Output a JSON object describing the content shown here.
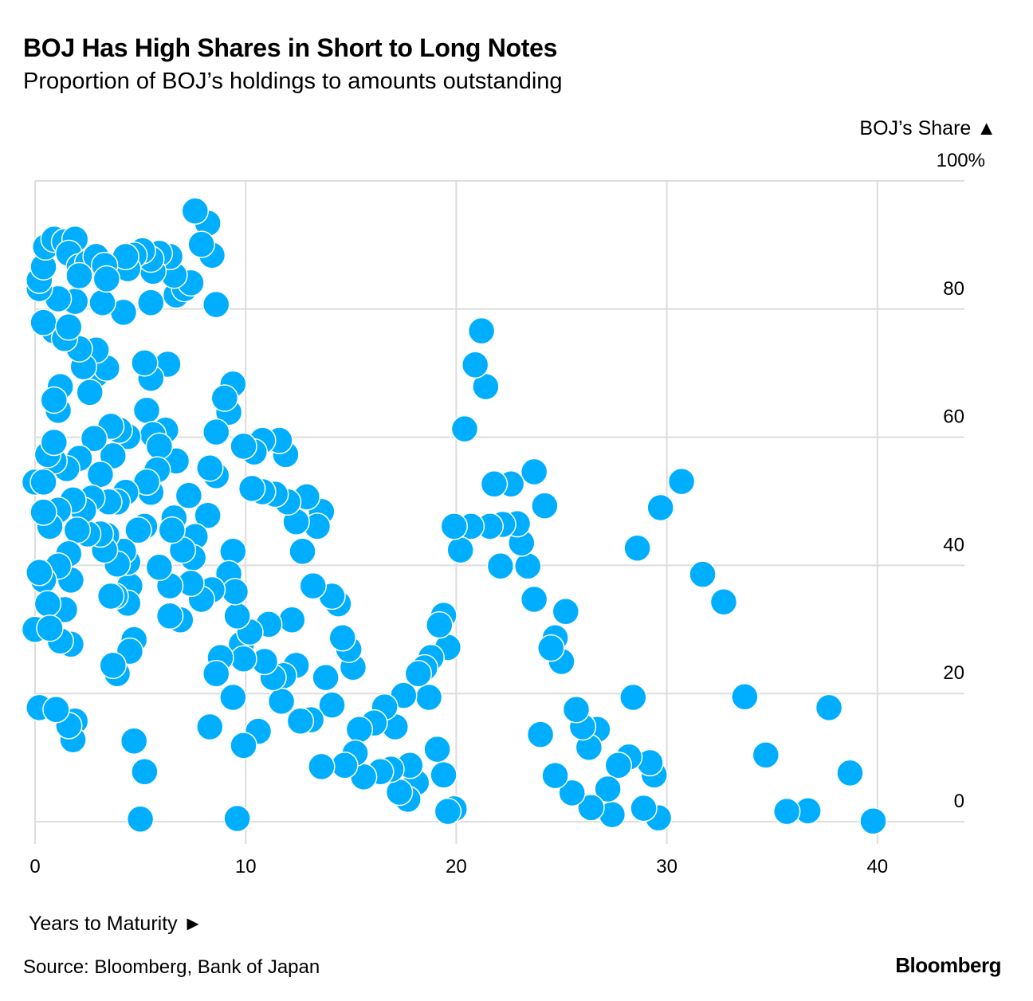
{
  "header": {
    "title": "BOJ Has High Shares in Short to Long Notes",
    "subtitle": "Proportion of BOJ’s holdings to amounts outstanding"
  },
  "footer": {
    "source": "Source: Bloomberg, Bank of Japan",
    "logo": "Bloomberg"
  },
  "colors": {
    "point": "#00AEFF",
    "grid": "#dddddd"
  },
  "chart_data": {
    "type": "scatter",
    "title": "BOJ Has High Shares in Short to Long Notes",
    "subtitle": "Proportion of BOJ’s holdings to amounts outstanding",
    "xlabel": "Years to Maturity ►",
    "ylabel": "BOJ’s Share ▲",
    "xlim": [
      0,
      42
    ],
    "ylim": [
      0,
      100
    ],
    "x_ticks": [
      0,
      10,
      20,
      30,
      40
    ],
    "x_tick_labels": [
      "0",
      "10",
      "20",
      "30",
      "40"
    ],
    "y_ticks": [
      0,
      20,
      40,
      60,
      80,
      100
    ],
    "y_tick_labels": [
      "0",
      "20",
      "40",
      "60",
      "80",
      "100%"
    ],
    "grid": true,
    "points": [
      [
        39.8,
        0.1
      ],
      [
        38.7,
        7.6
      ],
      [
        37.7,
        17.8
      ],
      [
        36.7,
        1.7
      ],
      [
        35.7,
        1.6
      ],
      [
        34.7,
        10.4
      ],
      [
        33.7,
        19.5
      ],
      [
        32.7,
        34.3
      ],
      [
        31.7,
        38.6
      ],
      [
        30.7,
        53.1
      ],
      [
        29.7,
        49.0
      ],
      [
        29.6,
        0.6
      ],
      [
        28.9,
        2.1
      ],
      [
        29.4,
        7.3
      ],
      [
        29.2,
        9.2
      ],
      [
        28.6,
        42.7
      ],
      [
        28.4,
        19.4
      ],
      [
        28.2,
        10.1
      ],
      [
        27.7,
        8.8
      ],
      [
        27.4,
        1.1
      ],
      [
        27.2,
        5.1
      ],
      [
        26.7,
        14.4
      ],
      [
        26.4,
        2.2
      ],
      [
        26.3,
        11.6
      ],
      [
        26.0,
        14.8
      ],
      [
        25.7,
        17.5
      ],
      [
        25.5,
        4.5
      ],
      [
        25.2,
        32.8
      ],
      [
        25.0,
        25.0
      ],
      [
        24.7,
        28.7
      ],
      [
        24.5,
        27.1
      ],
      [
        24.7,
        7.2
      ],
      [
        24.0,
        13.6
      ],
      [
        24.2,
        49.3
      ],
      [
        23.7,
        54.6
      ],
      [
        23.7,
        34.7
      ],
      [
        23.4,
        39.9
      ],
      [
        23.1,
        43.5
      ],
      [
        22.9,
        46.5
      ],
      [
        22.6,
        52.7
      ],
      [
        22.2,
        46.4
      ],
      [
        22.1,
        39.9
      ],
      [
        21.8,
        52.7
      ],
      [
        21.6,
        46.1
      ],
      [
        21.4,
        67.9
      ],
      [
        21.2,
        76.6
      ],
      [
        20.9,
        71.3
      ],
      [
        20.7,
        46.1
      ],
      [
        20.4,
        61.3
      ],
      [
        20.2,
        42.4
      ],
      [
        19.9,
        46.1
      ],
      [
        19.9,
        2.0
      ],
      [
        19.6,
        1.6
      ],
      [
        19.6,
        27.2
      ],
      [
        19.4,
        32.2
      ],
      [
        19.2,
        30.7
      ],
      [
        19.1,
        11.3
      ],
      [
        19.4,
        7.3
      ],
      [
        18.8,
        25.6
      ],
      [
        18.7,
        19.4
      ],
      [
        18.5,
        24.0
      ],
      [
        18.2,
        23.1
      ],
      [
        18.1,
        6.1
      ],
      [
        17.8,
        8.8
      ],
      [
        17.7,
        3.5
      ],
      [
        17.5,
        19.7
      ],
      [
        17.3,
        4.6
      ],
      [
        17.1,
        14.8
      ],
      [
        16.9,
        8.2
      ],
      [
        16.6,
        17.9
      ],
      [
        16.4,
        7.8
      ],
      [
        16.1,
        15.4
      ],
      [
        15.6,
        7.0
      ],
      [
        15.4,
        14.4
      ],
      [
        15.2,
        10.7
      ],
      [
        14.7,
        8.8
      ],
      [
        15.1,
        24.1
      ],
      [
        14.9,
        26.9
      ],
      [
        14.6,
        28.7
      ],
      [
        13.6,
        8.6
      ],
      [
        14.1,
        18.2
      ],
      [
        13.8,
        22.5
      ],
      [
        14.4,
        34.0
      ],
      [
        14.1,
        35.2
      ],
      [
        13.2,
        36.8
      ],
      [
        13.1,
        15.9
      ],
      [
        12.6,
        15.7
      ],
      [
        12.7,
        42.2
      ],
      [
        13.6,
        48.4
      ],
      [
        13.4,
        46.1
      ],
      [
        12.9,
        50.7
      ],
      [
        12.4,
        46.8
      ],
      [
        12.0,
        49.9
      ],
      [
        11.9,
        57.3
      ],
      [
        11.6,
        59.5
      ],
      [
        12.4,
        24.4
      ],
      [
        11.8,
        22.8
      ],
      [
        11.7,
        18.8
      ],
      [
        11.3,
        22.5
      ],
      [
        12.2,
        31.5
      ],
      [
        11.1,
        30.8
      ],
      [
        10.9,
        25.0
      ],
      [
        10.8,
        59.5
      ],
      [
        11.4,
        51.1
      ],
      [
        10.8,
        51.5
      ],
      [
        10.4,
        57.7
      ],
      [
        10.3,
        52.0
      ],
      [
        9.9,
        58.6
      ],
      [
        10.6,
        14.1
      ],
      [
        9.9,
        11.9
      ],
      [
        9.6,
        0.5
      ],
      [
        9.4,
        19.4
      ],
      [
        9.8,
        27.7
      ],
      [
        10.2,
        29.6
      ],
      [
        9.9,
        25.4
      ],
      [
        9.6,
        32.1
      ],
      [
        9.4,
        68.3
      ],
      [
        9.2,
        63.9
      ],
      [
        9.0,
        66.1
      ],
      [
        9.4,
        42.2
      ],
      [
        9.2,
        38.7
      ],
      [
        9.5,
        35.9
      ],
      [
        8.8,
        25.6
      ],
      [
        8.6,
        23.1
      ],
      [
        8.3,
        14.8
      ],
      [
        8.6,
        80.7
      ],
      [
        8.4,
        88.4
      ],
      [
        8.2,
        93.4
      ],
      [
        7.6,
        95.3
      ],
      [
        7.9,
        90.1
      ],
      [
        8.6,
        60.8
      ],
      [
        8.6,
        54.0
      ],
      [
        8.2,
        47.8
      ],
      [
        8.3,
        55.2
      ],
      [
        8.4,
        36.2
      ],
      [
        7.9,
        34.7
      ],
      [
        7.6,
        44.5
      ],
      [
        7.5,
        41.2
      ],
      [
        7.3,
        50.9
      ],
      [
        7.4,
        37.2
      ],
      [
        6.9,
        31.5
      ],
      [
        6.6,
        47.4
      ],
      [
        7.0,
        42.4
      ],
      [
        6.4,
        32.1
      ],
      [
        6.5,
        45.5
      ],
      [
        6.4,
        36.8
      ],
      [
        6.7,
        56.3
      ],
      [
        6.7,
        82.2
      ],
      [
        7.1,
        83.2
      ],
      [
        7.4,
        84.1
      ],
      [
        6.6,
        85.3
      ],
      [
        6.4,
        88.2
      ],
      [
        5.9,
        88.7
      ],
      [
        5.6,
        85.9
      ],
      [
        5.5,
        87.8
      ],
      [
        5.1,
        89.1
      ],
      [
        5.5,
        81.0
      ],
      [
        4.7,
        88.4
      ],
      [
        4.4,
        86.3
      ],
      [
        4.2,
        79.5
      ],
      [
        4.3,
        88.2
      ],
      [
        6.3,
        71.4
      ],
      [
        5.5,
        69.2
      ],
      [
        5.2,
        71.6
      ],
      [
        5.3,
        64.2
      ],
      [
        6.2,
        61.1
      ],
      [
        5.6,
        60.4
      ],
      [
        5.9,
        58.6
      ],
      [
        5.8,
        54.9
      ],
      [
        5.5,
        51.4
      ],
      [
        5.3,
        53.0
      ],
      [
        5.9,
        39.7
      ],
      [
        5.2,
        46.1
      ],
      [
        4.9,
        45.5
      ],
      [
        5.0,
        0.4
      ],
      [
        5.2,
        7.8
      ],
      [
        4.7,
        12.6
      ],
      [
        4.7,
        28.4
      ],
      [
        4.5,
        26.6
      ],
      [
        4.5,
        36.8
      ],
      [
        4.4,
        40.5
      ],
      [
        4.4,
        34.1
      ],
      [
        4.2,
        42.2
      ],
      [
        3.9,
        40.2
      ],
      [
        3.8,
        35.2
      ],
      [
        4.3,
        51.4
      ],
      [
        3.9,
        49.9
      ],
      [
        4.4,
        60.1
      ],
      [
        4.0,
        61.1
      ],
      [
        3.7,
        57.1
      ],
      [
        3.6,
        61.7
      ],
      [
        3.9,
        23.1
      ],
      [
        3.7,
        24.4
      ],
      [
        3.4,
        44.7
      ],
      [
        3.6,
        35.2
      ],
      [
        3.3,
        42.4
      ],
      [
        3.1,
        54.2
      ],
      [
        3.5,
        49.9
      ],
      [
        2.8,
        59.8
      ],
      [
        3.1,
        44.9
      ],
      [
        2.9,
        69.8
      ],
      [
        3.4,
        70.8
      ],
      [
        2.9,
        73.6
      ],
      [
        2.6,
        67.0
      ],
      [
        2.3,
        71.0
      ],
      [
        2.1,
        73.8
      ],
      [
        2.5,
        44.9
      ],
      [
        2.7,
        50.5
      ],
      [
        2.3,
        48.6
      ],
      [
        2.1,
        56.7
      ],
      [
        2.0,
        45.5
      ],
      [
        1.7,
        37.7
      ],
      [
        1.8,
        50.2
      ],
      [
        1.6,
        41.8
      ],
      [
        1.9,
        15.7
      ],
      [
        1.8,
        12.8
      ],
      [
        1.6,
        15.0
      ],
      [
        1.7,
        27.7
      ],
      [
        1.2,
        28.2
      ],
      [
        1.4,
        33.1
      ],
      [
        1.1,
        39.9
      ],
      [
        1.1,
        48.6
      ],
      [
        1.5,
        55.1
      ],
      [
        0.9,
        56.3
      ],
      [
        0.6,
        57.3
      ],
      [
        1.2,
        67.9
      ],
      [
        1.1,
        64.2
      ],
      [
        0.9,
        65.8
      ],
      [
        0.7,
        46.1
      ],
      [
        0.4,
        48.3
      ],
      [
        0.4,
        37.7
      ],
      [
        0.6,
        34.0
      ],
      [
        0.2,
        38.9
      ],
      [
        0.0,
        30.0
      ],
      [
        0.7,
        30.2
      ],
      [
        0.2,
        17.8
      ],
      [
        1.0,
        17.5
      ],
      [
        0.0,
        53.0
      ],
      [
        0.4,
        53.0
      ],
      [
        0.9,
        59.2
      ],
      [
        0.9,
        76.6
      ],
      [
        0.4,
        77.9
      ],
      [
        1.4,
        75.4
      ],
      [
        1.6,
        77.2
      ],
      [
        1.9,
        81.2
      ],
      [
        1.1,
        81.6
      ],
      [
        0.2,
        83.2
      ],
      [
        0.2,
        84.5
      ],
      [
        0.4,
        86.6
      ],
      [
        0.5,
        89.7
      ],
      [
        0.9,
        90.9
      ],
      [
        1.4,
        90.5
      ],
      [
        1.9,
        90.9
      ],
      [
        1.6,
        88.7
      ],
      [
        2.1,
        86.6
      ],
      [
        2.5,
        87.2
      ],
      [
        2.9,
        88.2
      ],
      [
        3.3,
        86.8
      ],
      [
        3.2,
        81.0
      ],
      [
        3.4,
        84.7
      ],
      [
        2.1,
        85.2
      ]
    ]
  }
}
